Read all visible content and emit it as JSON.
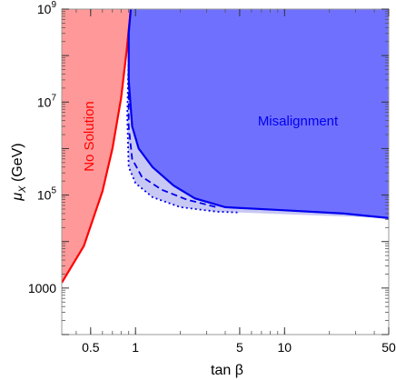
{
  "chart_data": {
    "type": "area",
    "xlabel": "tan β",
    "ylabel": "μX (GeV)",
    "x_scale": "log",
    "y_scale": "log",
    "xlim": [
      0.32,
      50
    ],
    "ylim": [
      100,
      1000000000
    ],
    "x_ticks": [
      {
        "value": 0.5,
        "label": "0.5"
      },
      {
        "value": 1,
        "label": "1"
      },
      {
        "value": 5,
        "label": "5"
      },
      {
        "value": 10,
        "label": "10"
      },
      {
        "value": 50,
        "label": "50"
      }
    ],
    "y_ticks": [
      {
        "value": 1000,
        "label": "1000"
      },
      {
        "value": 100000,
        "label": "10^5",
        "base": "10",
        "exp": "5"
      },
      {
        "value": 10000000,
        "label": "10^7",
        "base": "10",
        "exp": "7"
      },
      {
        "value": 1000000000,
        "label": "10^9",
        "base": "10",
        "exp": "9"
      }
    ],
    "series": [
      {
        "name": "No Solution",
        "color": "#ff0000",
        "fill": "#ff9999",
        "boundary": [
          [
            0.32,
            1300
          ],
          [
            0.45,
            8000
          ],
          [
            0.6,
            120000
          ],
          [
            0.7,
            1000000
          ],
          [
            0.8,
            12000000
          ],
          [
            0.87,
            120000000
          ],
          [
            0.93,
            1000000000
          ]
        ]
      },
      {
        "name": "Misalignment",
        "color": "#0000ee",
        "fill": "#7070ff",
        "boundary": [
          [
            0.93,
            1000000000
          ],
          [
            0.9,
            300000000
          ],
          [
            0.9,
            30000000
          ],
          [
            0.95,
            3000000
          ],
          [
            1.05,
            1000000
          ],
          [
            1.3,
            400000
          ],
          [
            1.8,
            160000
          ],
          [
            2.5,
            85000
          ],
          [
            4,
            55000
          ],
          [
            10,
            47000
          ],
          [
            25,
            40000
          ],
          [
            50,
            32000
          ]
        ]
      },
      {
        "name": "",
        "style": "dashed",
        "color": "#0000ee",
        "boundary": [
          [
            0.9,
            300000000
          ],
          [
            0.9,
            3000000
          ],
          [
            0.95,
            600000
          ],
          [
            1.1,
            250000
          ],
          [
            1.5,
            130000
          ],
          [
            2.2,
            80000
          ],
          [
            3.5,
            55000
          ]
        ]
      },
      {
        "name": "",
        "style": "dotted",
        "color": "#0000ee",
        "boundary": [
          [
            0.9,
            100000000
          ],
          [
            0.88,
            5000000
          ],
          [
            0.9,
            400000
          ],
          [
            1,
            180000
          ],
          [
            1.3,
            90000
          ],
          [
            2,
            55000
          ],
          [
            3.5,
            44000
          ],
          [
            5,
            42000
          ]
        ]
      }
    ],
    "annotations": [
      {
        "text": "No Solution",
        "color": "#ff0000"
      },
      {
        "text": "Misalignment",
        "color": "#0000ee"
      }
    ]
  }
}
